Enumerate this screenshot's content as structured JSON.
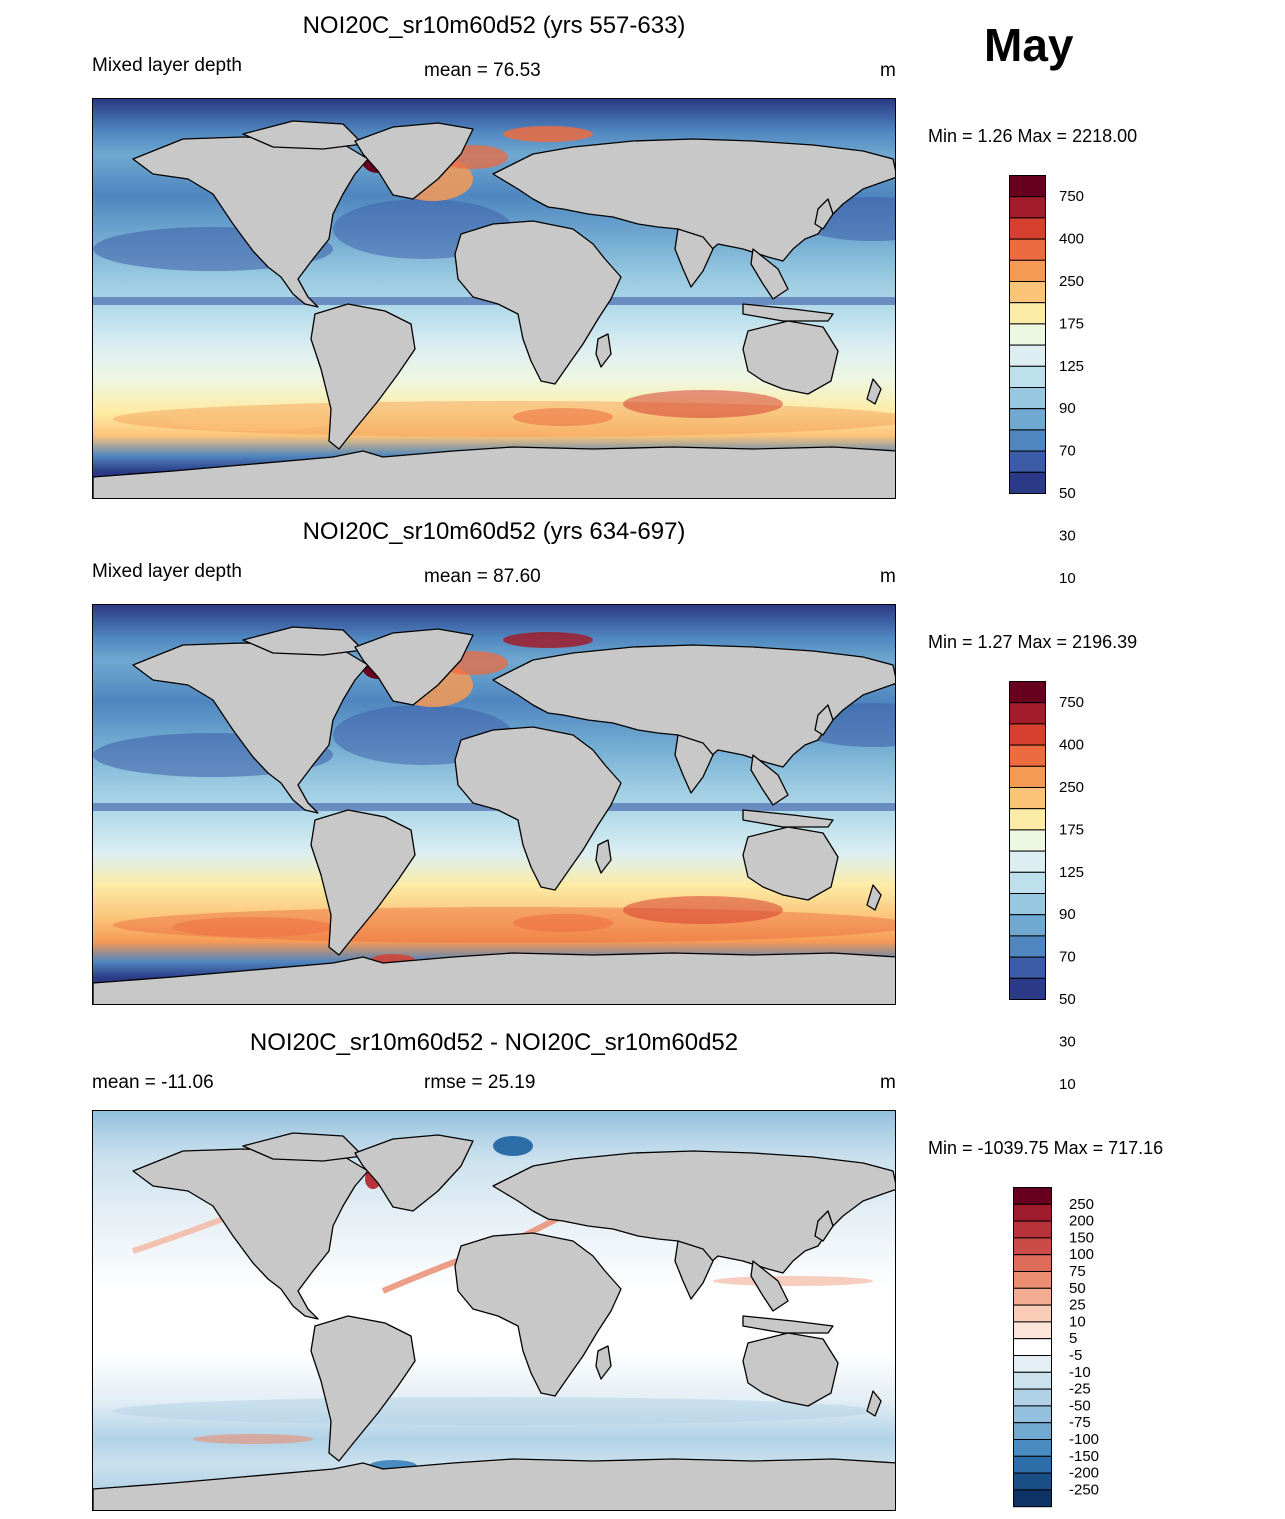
{
  "month": "May",
  "panels": [
    {
      "title": "NOI20C_sr10m60d52 (yrs 557-633)",
      "left_label": "Mixed layer depth",
      "center_label": "mean =  76.53",
      "unit": "m",
      "minmax": "Min =    1.26 Max = 2218.00",
      "colorbar_labels": [
        "750",
        "400",
        "250",
        "175",
        "125",
        "90",
        "70",
        "50",
        "30",
        "10"
      ]
    },
    {
      "title": "NOI20C_sr10m60d52 (yrs 634-697)",
      "left_label": "Mixed layer depth",
      "center_label": "mean =  87.60",
      "unit": "m",
      "minmax": "Min =    1.27 Max = 2196.39",
      "colorbar_labels": [
        "750",
        "400",
        "250",
        "175",
        "125",
        "90",
        "70",
        "50",
        "30",
        "10"
      ]
    },
    {
      "title": "NOI20C_sr10m60d52 - NOI20C_sr10m60d52",
      "left_label": "mean = -11.06",
      "center_label": "rmse =  25.19",
      "unit": "m",
      "minmax": "Min = -1039.75 Max = 717.16",
      "colorbar_labels": [
        "250",
        "200",
        "150",
        "100",
        "75",
        "50",
        "25",
        "10",
        "5",
        "-5",
        "-10",
        "-25",
        "-50",
        "-75",
        "-100",
        "-150",
        "-200",
        "-250"
      ]
    }
  ],
  "colors": {
    "land": "#c8c8c8",
    "abs_scale": [
      "#67001f",
      "#a11d2b",
      "#d6402f",
      "#ec6b3f",
      "#f59a55",
      "#fbc479",
      "#fdeca5",
      "#eef7e1",
      "#dceef2",
      "#bde0ec",
      "#97c8e0",
      "#6fa8d0",
      "#4f86bf",
      "#3c5ca8",
      "#2a3a86"
    ],
    "diff_scale": [
      "#67001f",
      "#9e1a2d",
      "#b8323a",
      "#cb4b46",
      "#dd6d5a",
      "#ea8e72",
      "#f3ad93",
      "#f9cdb8",
      "#fde6d9",
      "#ffffff",
      "#e4eef5",
      "#cbe1ee",
      "#b1d2e6",
      "#93c0dd",
      "#71a9d1",
      "#4a8cc0",
      "#2d6ea8",
      "#1a4f86",
      "#0d3264"
    ]
  },
  "chart_data": [
    {
      "type": "heatmap",
      "title": "NOI20C_sr10m60d52 (yrs 557-633)",
      "field": "Mixed layer depth",
      "unit": "m",
      "mean": 76.53,
      "min": 1.26,
      "max": 2218.0,
      "contour_levels": [
        10,
        20,
        30,
        40,
        50,
        60,
        70,
        80,
        90,
        100,
        125,
        150,
        175,
        200,
        250,
        300,
        400,
        500,
        750
      ]
    },
    {
      "type": "heatmap",
      "title": "NOI20C_sr10m60d52 (yrs 634-697)",
      "field": "Mixed layer depth",
      "unit": "m",
      "mean": 87.6,
      "min": 1.27,
      "max": 2196.39,
      "contour_levels": [
        10,
        20,
        30,
        40,
        50,
        60,
        70,
        80,
        90,
        100,
        125,
        150,
        175,
        200,
        250,
        300,
        400,
        500,
        750
      ]
    },
    {
      "type": "heatmap",
      "title": "NOI20C_sr10m60d52 - NOI20C_sr10m60d52",
      "unit": "m",
      "mean": -11.06,
      "rmse": 25.19,
      "min": -1039.75,
      "max": 717.16,
      "contour_levels": [
        -250,
        -200,
        -150,
        -100,
        -75,
        -50,
        -25,
        -10,
        -5,
        5,
        10,
        25,
        50,
        75,
        100,
        150,
        200,
        250
      ]
    }
  ]
}
